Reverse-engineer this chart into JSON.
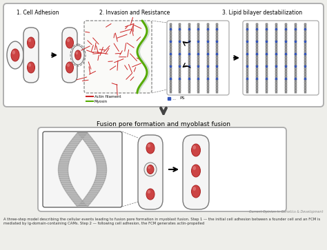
{
  "bg_color": "#eeeeea",
  "white": "#ffffff",
  "black": "#000000",
  "red_fill": "#cc4444",
  "red_stroke": "#aa2222",
  "gray_cell": "#f5f5f5",
  "gray_dark": "#888888",
  "actin_red": "#cc2222",
  "myosin_green": "#55aa00",
  "blue_ps": "#3355bb",
  "panel1_title": "1. Cell Adhesion",
  "panel2_title": "2. Invasion and Resistance",
  "panel3_title": "3. Lipid bilayer destabilization",
  "bottom_title": "Fusion pore formation and myoblast fusion",
  "legend1": "Actin filament",
  "legend2": "Myosin",
  "ps_label": "PS",
  "journal": "Current Opinion in Genetics & Development",
  "caption": "A three-step model describing the cellular events leading to fusion pore formation in myoblast fusion. Step 1 — the initial cell adhesion between a founder cell and an FCM is mediated by Ig-domain-containing CAMs. Step 2 — following cell adhesion, the FCM generates actin-propelled"
}
